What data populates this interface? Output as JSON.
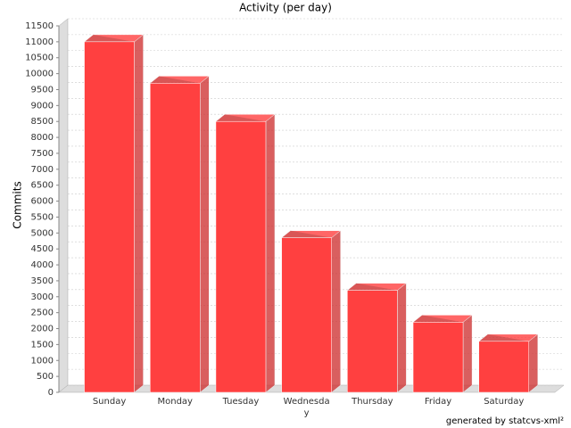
{
  "chart_data": {
    "type": "bar3d",
    "title": "Activity (per day)",
    "y_label": "Commits",
    "footer": "generated by statcvs-xml²",
    "categories": [
      "Sunday",
      "Monday",
      "Tuesday",
      "Wednesday",
      "Thursday",
      "Friday",
      "Saturday"
    ],
    "values": [
      11000,
      9700,
      8500,
      4850,
      3200,
      2200,
      1600
    ],
    "color": "#ff4040",
    "ylim": [
      0,
      11500
    ],
    "yticks": [
      0,
      500,
      1000,
      1500,
      2000,
      2500,
      3000,
      3500,
      4000,
      4500,
      5000,
      5500,
      6000,
      6500,
      7000,
      7500,
      8000,
      8500,
      9000,
      9500,
      10000,
      10500,
      11000,
      11500
    ],
    "grid": true
  }
}
